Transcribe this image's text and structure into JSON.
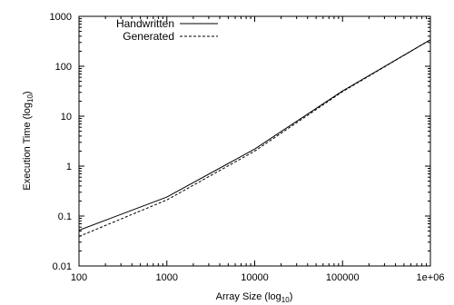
{
  "chart_data": {
    "type": "line",
    "xscale": "log",
    "yscale": "log",
    "xlim": [
      100,
      1000000
    ],
    "ylim": [
      0.01,
      1000
    ],
    "xticks": [
      "100",
      "1000",
      "10000",
      "100000",
      "1e+06"
    ],
    "yticks": [
      "0.01",
      "0.1",
      "1",
      "10",
      "100",
      "1000"
    ],
    "xlabel_text": "Array Size (log",
    "xlabel_sub": "10",
    "xlabel_end": ")",
    "ylabel_text": "Execution Time (log",
    "ylabel_sub": "10",
    "ylabel_end": ")",
    "legend_position": "top-left",
    "grid": false,
    "series": [
      {
        "name": "Handwritten",
        "style": "solid",
        "x": [
          100,
          1000,
          10000,
          100000,
          1000000
        ],
        "y": [
          0.052,
          0.24,
          2.2,
          32,
          340
        ]
      },
      {
        "name": "Generated",
        "style": "dashed",
        "x": [
          100,
          1000,
          10000,
          100000,
          1000000
        ],
        "y": [
          0.039,
          0.21,
          2.0,
          31,
          340
        ]
      }
    ]
  }
}
